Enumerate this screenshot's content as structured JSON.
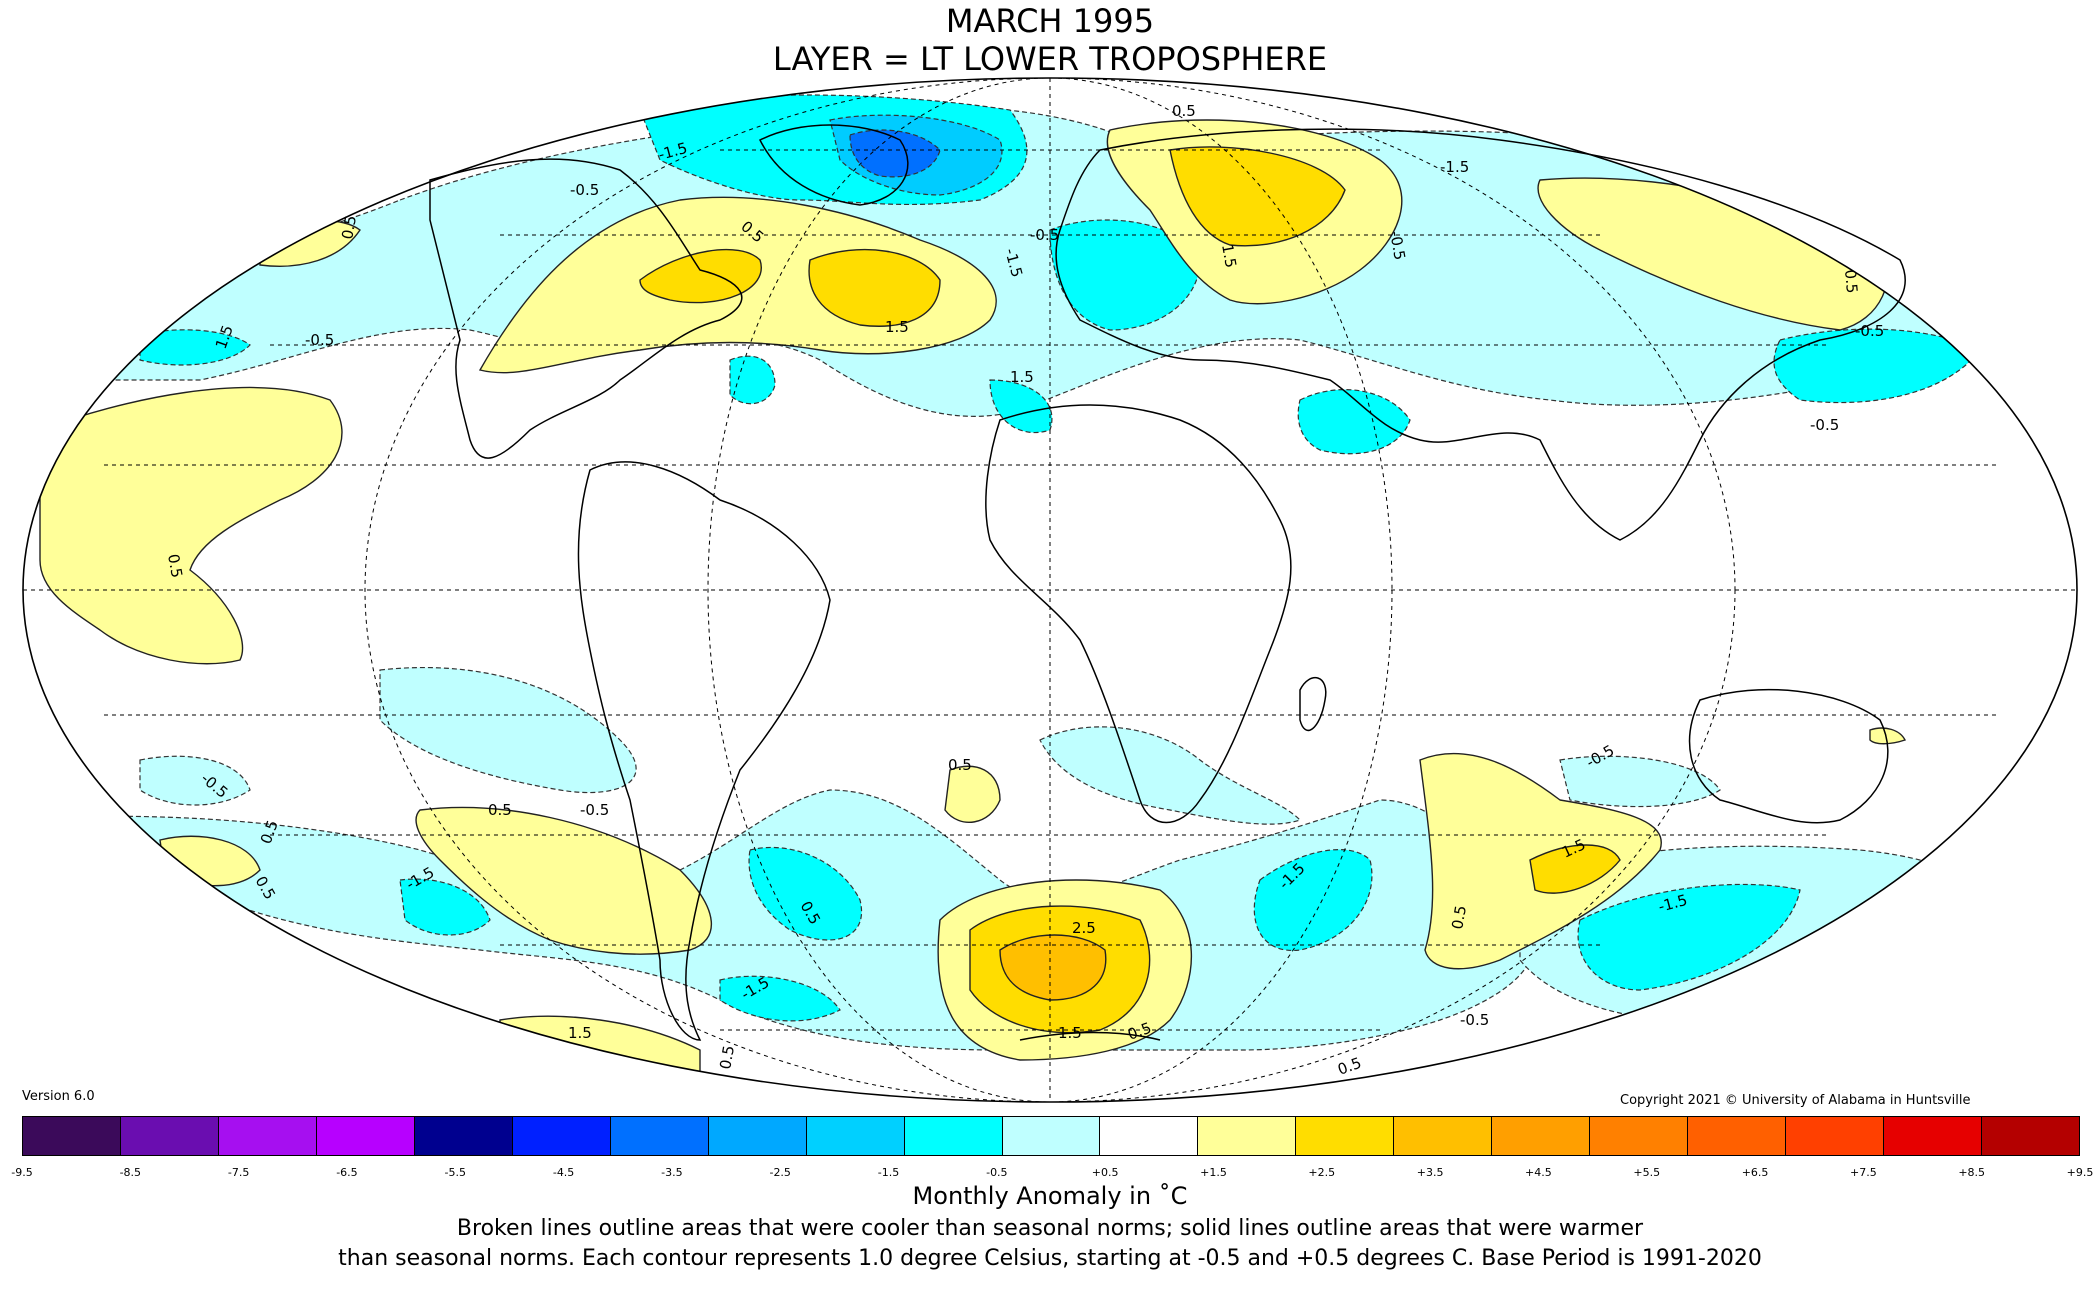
{
  "title": {
    "line1": "MARCH 1995",
    "line2": "LAYER = LT LOWER TROPOSPHERE"
  },
  "version": "Version 6.0",
  "copyright": "Copyright 2021 © University of Alabama in Huntsville",
  "colorbar": {
    "title": "Monthly Anomaly in ˚C",
    "ticks": [
      "-9.5",
      "-8.5",
      "-7.5",
      "-6.5",
      "-5.5",
      "-4.5",
      "-3.5",
      "-2.5",
      "-1.5",
      "-0.5",
      "+0.5",
      "+1.5",
      "+2.5",
      "+3.5",
      "+4.5",
      "+5.5",
      "+6.5",
      "+7.5",
      "+8.5",
      "+9.5"
    ],
    "colors": [
      "#3b0a5a",
      "#6a0db0",
      "#a60ff0",
      "#b700ff",
      "#00008f",
      "#0020ff",
      "#0070ff",
      "#00a8ff",
      "#00d0ff",
      "#00ffff",
      "#bfffff",
      "#ffffff",
      "#ffff99",
      "#ffdd00",
      "#ffbf00",
      "#ff9f00",
      "#ff8000",
      "#ff6000",
      "#ff4000",
      "#e60000",
      "#b40000"
    ]
  },
  "notes": {
    "line1": "Broken lines outline areas that were cooler than seasonal norms; solid lines outline areas that were warmer",
    "line2": "than seasonal norms. Each contour represents 1.0 degree Celsius, starting at -0.5 and +0.5 degrees C. Base Period is 1991-2020"
  },
  "contour_labels": [
    {
      "text": "0.5"
    },
    {
      "text": "-0.5"
    },
    {
      "text": "0.5"
    },
    {
      "text": "1.5"
    },
    {
      "text": "-1.5"
    },
    {
      "text": "-0.5"
    },
    {
      "text": "1.5"
    },
    {
      "text": "-0.5"
    },
    {
      "text": "0.5"
    },
    {
      "text": "1.5"
    },
    {
      "text": "-1.5"
    },
    {
      "text": "-0.5"
    },
    {
      "text": "0.5"
    },
    {
      "text": "1.5"
    },
    {
      "text": "-0.5"
    },
    {
      "text": "-0.5"
    },
    {
      "text": "0.5"
    },
    {
      "text": "-1.5"
    },
    {
      "text": "-0.5"
    },
    {
      "text": "0.5"
    },
    {
      "text": "-0.5"
    },
    {
      "text": "0.5"
    },
    {
      "text": "0.5"
    },
    {
      "text": "-1.5"
    },
    {
      "text": "0.5"
    },
    {
      "text": "2.5"
    },
    {
      "text": "1.5"
    },
    {
      "text": "-1.5"
    },
    {
      "text": "0.5"
    },
    {
      "text": "1.5"
    },
    {
      "text": "-1.5"
    },
    {
      "text": "-0.5"
    },
    {
      "text": "0.5"
    },
    {
      "text": "-1.5"
    },
    {
      "text": "0.5"
    },
    {
      "text": "1.5"
    },
    {
      "text": "0.5"
    },
    {
      "text": "-0.5"
    },
    {
      "text": "0.5"
    }
  ],
  "map_colors": {
    "cool1": "#bfffff",
    "cool2": "#00ffff",
    "cool3": "#00ccff",
    "cool4": "#0070ff",
    "cool5": "#0020ff",
    "warm1": "#ffff99",
    "warm2": "#ffdd00",
    "warm3": "#ffbf00"
  }
}
